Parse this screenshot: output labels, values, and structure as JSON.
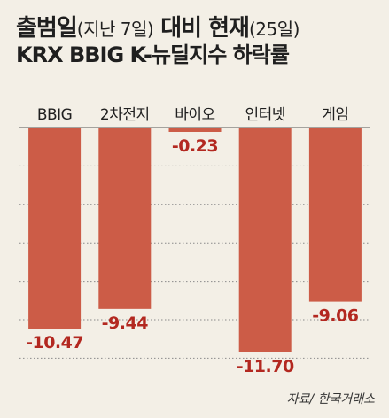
{
  "title": {
    "line1_a": "출범일",
    "line1_b": "(지난 7일)",
    "line1_c": " 대비 현재",
    "line1_d": "(25일)",
    "line2": "KRX BBIG K-뉴딜지수 하락률"
  },
  "source": "자료/ 한국거래소",
  "colors": {
    "background": "#f3efe6",
    "bar": "#cc5c47",
    "value_label": "#b32820",
    "grid": "#8a8a8a",
    "axis_text": "#1f1f1f"
  },
  "chart_data": {
    "type": "bar",
    "categories": [
      "BBIG",
      "2차전지",
      "바이오",
      "인터넷",
      "게임"
    ],
    "values": [
      -10.47,
      -9.44,
      -0.23,
      -11.7,
      -9.06
    ],
    "value_labels": [
      "-10.47",
      "-9.44",
      "-0.23",
      "-11.70",
      "-9.06"
    ],
    "ylim": [
      -12,
      0
    ],
    "grid": true,
    "legend": "none",
    "xlabel": "",
    "ylabel": ""
  }
}
